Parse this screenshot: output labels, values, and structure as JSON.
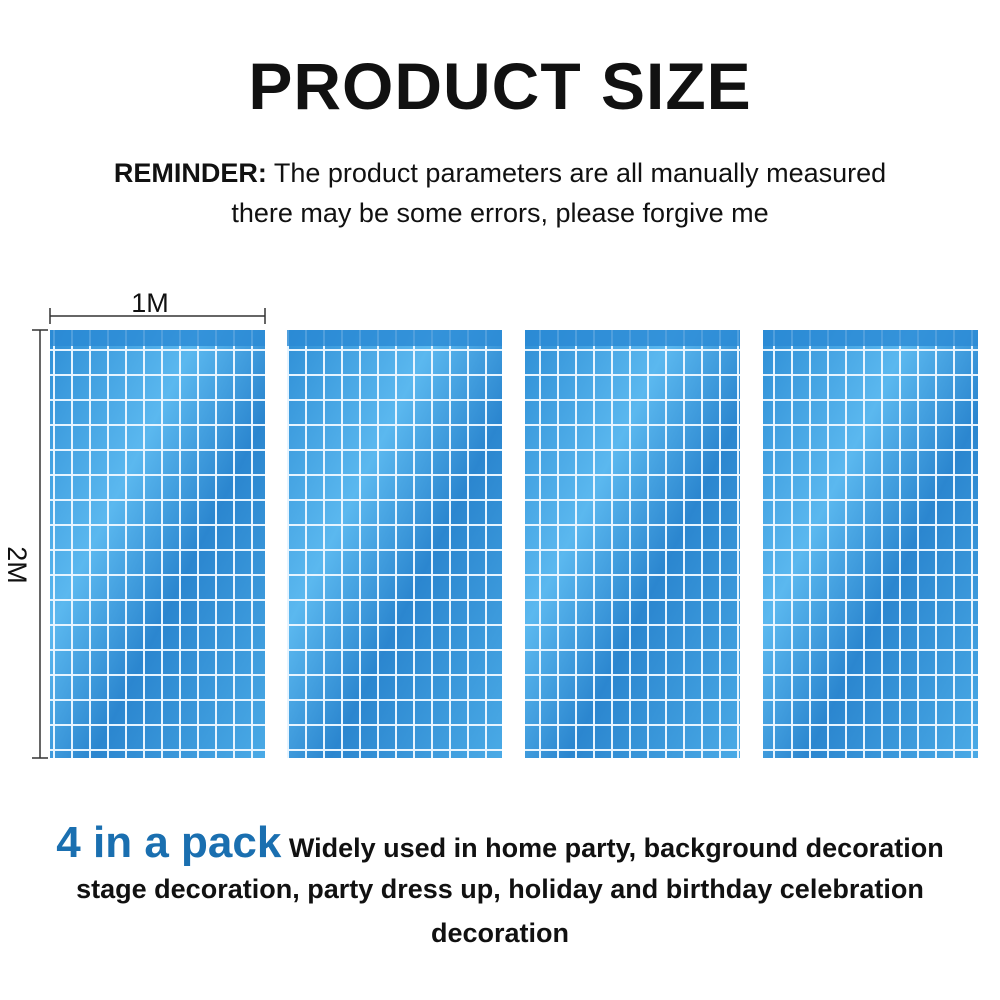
{
  "header": {
    "title": "PRODUCT SIZE",
    "reminder_label": "REMINDER:",
    "reminder_line1": "The product parameters are all manually measured",
    "reminder_line2": "there may be some errors, please forgive me"
  },
  "dimensions": {
    "width": "1M",
    "height": "2M"
  },
  "footer": {
    "highlight": "4 in a pack",
    "line1": "Widely used in home party, background decoration",
    "line2": "stage decoration, party dress up, holiday and birthday celebration",
    "line3": "decoration"
  }
}
